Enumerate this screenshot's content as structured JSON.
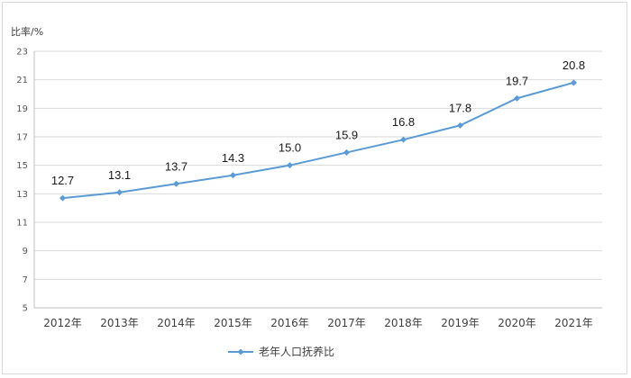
{
  "chart_data": {
    "type": "line",
    "title": "",
    "ylabel": "比率/%",
    "xlabel": "",
    "ylim": [
      5,
      23
    ],
    "yticks": [
      5,
      7,
      9,
      11,
      13,
      15,
      17,
      19,
      21,
      23
    ],
    "categories": [
      "2012年",
      "2013年",
      "2014年",
      "2015年",
      "2016年",
      "2017年",
      "2018年",
      "2019年",
      "2020年",
      "2021年"
    ],
    "series": [
      {
        "name": "老年人口抚养比",
        "values": [
          12.7,
          13.1,
          13.7,
          14.3,
          15.0,
          15.9,
          16.8,
          17.8,
          19.7,
          20.8
        ],
        "labels": [
          "12.7",
          "13.1",
          "13.7",
          "14.3",
          "15.0",
          "15.9",
          "16.8",
          "17.8",
          "19.7",
          "20.8"
        ],
        "color": "#5b9bd5",
        "marker": "diamond"
      }
    ],
    "grid": true,
    "legend": "bottom-center"
  }
}
